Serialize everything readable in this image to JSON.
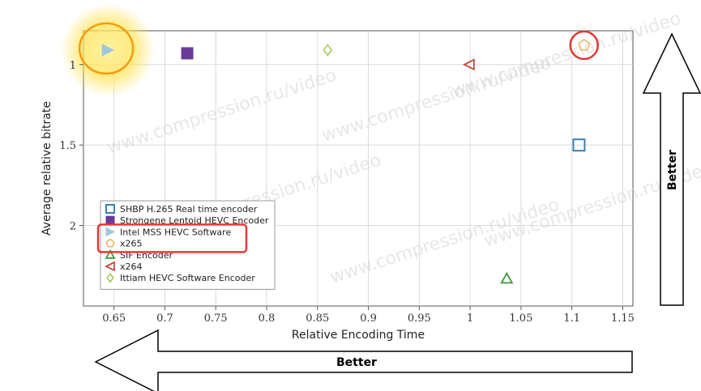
{
  "chart_data": {
    "type": "scatter",
    "xlabel": "Relative Encoding Time",
    "ylabel": "Average relative bitrate",
    "xlim": [
      0.62,
      1.16
    ],
    "ylim": [
      0.79,
      2.5
    ],
    "y_inverted": true,
    "grid": true,
    "x_ticks": [
      "0.65",
      "0.7",
      "0.75",
      "0.8",
      "0.85",
      "0.9",
      "0.95",
      "1",
      "1.05",
      "1.1",
      "1.15"
    ],
    "y_ticks": [
      "1",
      "1.5",
      "2"
    ],
    "legend_position": "bottom-left",
    "series": [
      {
        "name": "SHBP H.265 Real time encoder",
        "marker": "square-open",
        "color": "#3a7fb5",
        "x": 1.107,
        "y": 1.5
      },
      {
        "name": "Strongene Lentoid HEVC Encoder",
        "marker": "square-filled",
        "color": "#6a3a99",
        "x": 0.722,
        "y": 0.93
      },
      {
        "name": "Intel MSS HEVC Software",
        "marker": "triangle-right-filled",
        "color": "#9dc8de",
        "x": 0.644,
        "y": 0.91
      },
      {
        "name": "x265",
        "marker": "pentagon-open",
        "color": "#f0b36a",
        "x": 1.112,
        "y": 0.88
      },
      {
        "name": "SIF Encoder",
        "marker": "triangle-up-open",
        "color": "#3a9a3a",
        "x": 1.036,
        "y": 2.33
      },
      {
        "name": "x264",
        "marker": "triangle-left-open",
        "color": "#c0392b",
        "x": 0.999,
        "y": 1.0
      },
      {
        "name": "Ittiam HEVC Software Encoder",
        "marker": "diamond-open",
        "color": "#9ec94f",
        "x": 0.86,
        "y": 0.91
      }
    ],
    "watermark": "www.compression.ru/video"
  },
  "annotations": {
    "better_x_label": "Better",
    "better_y_label": "Better",
    "highlight_color": "#e53935",
    "glow_color": "#ffd200"
  }
}
